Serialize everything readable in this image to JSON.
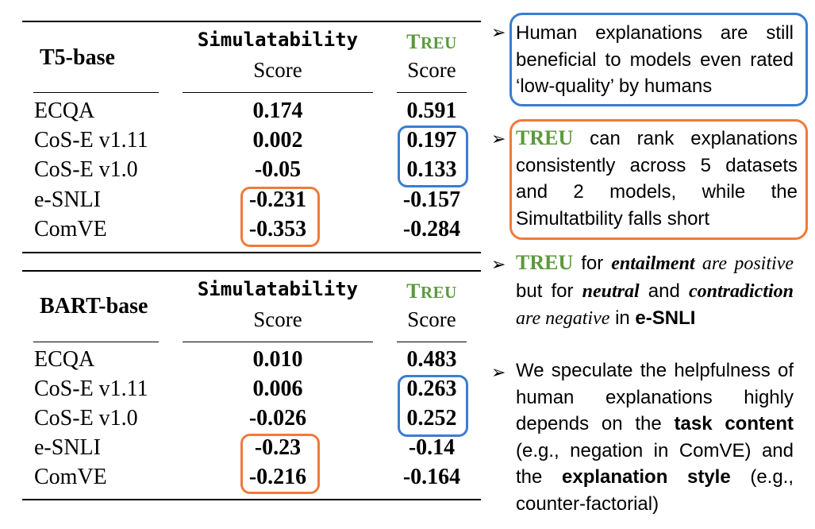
{
  "tables": [
    {
      "title": "T5-base",
      "col1_header_line1": "Simulatability",
      "col1_header_line2": "Score",
      "col2_header_line1": "TREU",
      "col2_header_line2": "Score",
      "rows": [
        {
          "label": "ECQA",
          "sim": "0.174",
          "treu": "0.591"
        },
        {
          "label": "CoS-E v1.11",
          "sim": "0.002",
          "treu": "0.197"
        },
        {
          "label": "CoS-E v1.0",
          "sim": "-0.05",
          "treu": "0.133"
        },
        {
          "label": "e-SNLI",
          "sim": "-0.231",
          "treu": "-0.157"
        },
        {
          "label": "ComVE",
          "sim": "-0.353",
          "treu": "-0.284"
        }
      ]
    },
    {
      "title": "BART-base",
      "col1_header_line1": "Simulatability",
      "col1_header_line2": "Score",
      "col2_header_line1": "TREU",
      "col2_header_line2": "Score",
      "rows": [
        {
          "label": "ECQA",
          "sim": "0.010",
          "treu": "0.483"
        },
        {
          "label": "CoS-E v1.11",
          "sim": "0.006",
          "treu": "0.263"
        },
        {
          "label": "CoS-E v1.0",
          "sim": "-0.026",
          "treu": "0.252"
        },
        {
          "label": "e-SNLI",
          "sim": "-0.23",
          "treu": "-0.14"
        },
        {
          "label": "ComVE",
          "sim": "-0.216",
          "treu": "-0.164"
        }
      ]
    }
  ],
  "bullets": {
    "arrow": "➢",
    "b1": "Human explanations are still beneficial to models even rated ‘low-quality’ by humans",
    "b2_treu": "TREU",
    "b2_rest": " can rank explanations consistently across 5 datasets and 2 models, while the Simultatbility falls short",
    "b3_treu": "TREU",
    "b3_for": " for ",
    "b3_entailment": "entailment",
    "b3_are": " are ",
    "b3_positive": "positive",
    "b3_but_for": " but for ",
    "b3_neutral": "neutral",
    "b3_and": " and ",
    "b3_contradiction": "contradiction",
    "b3_are2": " are ",
    "b3_negative": "negative",
    "b3_in": " in ",
    "b3_esnli": "e-SNLI",
    "b4_a": "We speculate the helpfulness of human explanations highly depends on the ",
    "b4_task": "task content",
    "b4_b": " (e.g., negation in ComVE) and the ",
    "b4_style": "explanation style",
    "b4_c": " (e.g., counter-factorial)"
  },
  "colors": {
    "treu_green": "#5b9a3c",
    "blue_box": "#3a7dd1",
    "orange_box": "#ef7a3a"
  }
}
